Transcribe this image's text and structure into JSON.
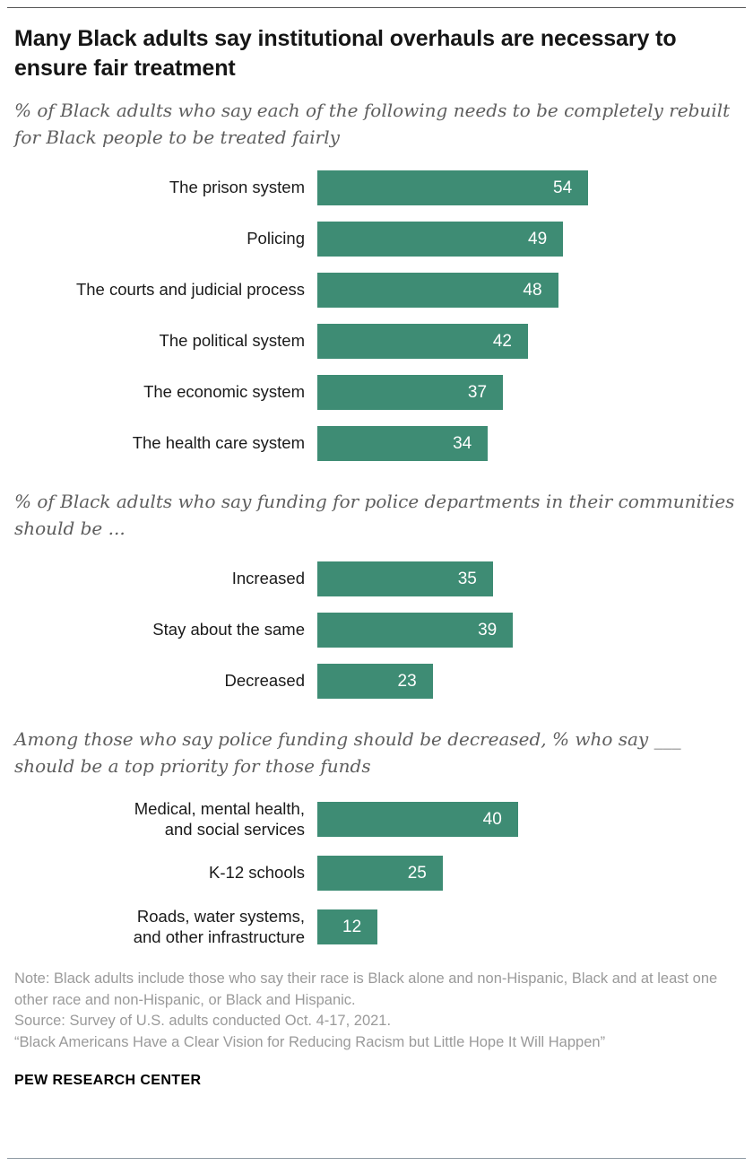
{
  "page": {
    "title": "Many Black adults say institutional overhauls are necessary to ensure fair treatment",
    "accent_color": "#3e8c74"
  },
  "chart_data": [
    {
      "type": "bar",
      "title": "% of Black adults who say each of the following needs to be completely rebuilt for Black people to be treated fairly",
      "categories": [
        "The prison system",
        "Policing",
        "The courts and judicial process",
        "The political system",
        "The economic system",
        "The health care system"
      ],
      "values": [
        54,
        49,
        48,
        42,
        37,
        34
      ],
      "xlim": [
        0,
        84
      ],
      "bar_color": "#3e8c74",
      "value_labels": "inside-right-white",
      "grid": false,
      "legend": false
    },
    {
      "type": "bar",
      "title": "% of Black adults who say funding for police departments in their communities should be ...",
      "categories": [
        "Increased",
        "Stay about the same",
        "Decreased"
      ],
      "values": [
        35,
        39,
        23
      ],
      "xlim": [
        0,
        84
      ],
      "bar_color": "#3e8c74",
      "value_labels": "inside-right-white",
      "grid": false,
      "legend": false
    },
    {
      "type": "bar",
      "title": "Among those who say police funding should be decreased, % who say ___ should be a top priority for those funds",
      "categories": [
        "Medical, mental health,\nand social services",
        "K-12 schools",
        "Roads, water systems,\nand other infrastructure"
      ],
      "values": [
        40,
        25,
        12
      ],
      "xlim": [
        0,
        84
      ],
      "bar_color": "#3e8c74",
      "value_labels": "inside-right-white",
      "grid": false,
      "legend": false
    }
  ],
  "footer": {
    "note": "Note: Black adults include those who say their race is Black alone and non-Hispanic, Black and at least one other race and non-Hispanic, or Black and Hispanic.",
    "source": "Source: Survey of U.S. adults conducted Oct. 4-17, 2021.",
    "report": "“Black Americans Have a Clear Vision for Reducing Racism but Little Hope It Will Happen”",
    "brand": "PEW RESEARCH CENTER"
  }
}
